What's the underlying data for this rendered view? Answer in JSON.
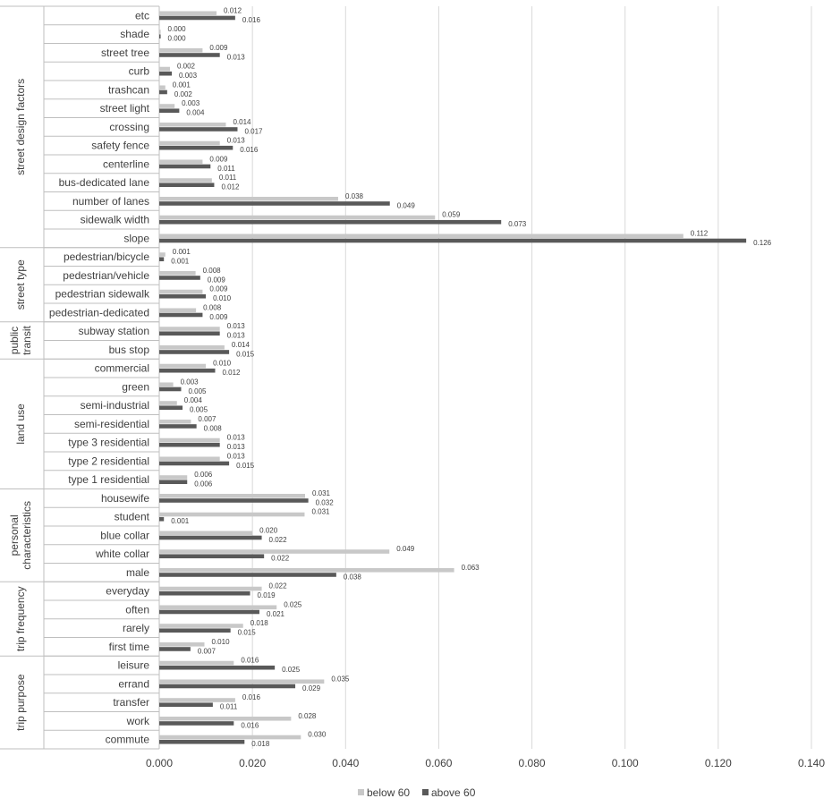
{
  "chart_data": {
    "type": "bar",
    "orientation": "horizontal",
    "groups": [
      {
        "name": "street design factors",
        "lines": [
          "street design factors"
        ],
        "categories": [
          "etc",
          "shade",
          "street tree",
          "curb",
          "trashcan",
          "street light",
          "crossing",
          "safety fence",
          "centerline",
          "bus-dedicated lane",
          "number of lanes",
          "sidewalk width",
          "slope"
        ]
      },
      {
        "name": "street type",
        "lines": [
          "street type"
        ],
        "categories": [
          "pedestrian/bicycle",
          "pedestrian/vehicle",
          "pedestrian sidewalk",
          "pedestrian-dedicated"
        ]
      },
      {
        "name": "public transit",
        "lines": [
          "public",
          "transit"
        ],
        "categories": [
          "subway station",
          "bus stop"
        ]
      },
      {
        "name": "land use",
        "lines": [
          "land use"
        ],
        "categories": [
          "commercial",
          "green",
          "semi-industrial",
          "semi-residential",
          "type 3 residential",
          "type 2 residential",
          "type 1 residential"
        ]
      },
      {
        "name": "personal characteristics",
        "lines": [
          "personal",
          "characteristics"
        ],
        "categories": [
          "housewife",
          "student",
          "blue collar",
          "white collar",
          "male"
        ]
      },
      {
        "name": "trip frequency",
        "lines": [
          "trip frequency"
        ],
        "categories": [
          "everyday",
          "often",
          "rarely",
          "first time"
        ]
      },
      {
        "name": "trip purpose",
        "lines": [
          "trip purpose"
        ],
        "categories": [
          "leisure",
          "errand",
          "transfer",
          "work",
          "commute"
        ]
      }
    ],
    "series": [
      {
        "name": "below 60",
        "color": "#c8c8c8",
        "labels": [
          "0.012",
          "0.000",
          "0.009",
          "0.002",
          "0.001",
          "0.003",
          "0.014",
          "0.013",
          "0.009",
          "0.011",
          "0.038",
          "0.059",
          "0.112",
          "0.001",
          "0.008",
          "0.009",
          "0.008",
          "0.013",
          "0.014",
          "0.010",
          "0.003",
          "0.004",
          "0.007",
          "0.013",
          "0.013",
          "0.006",
          "0.031",
          "0.031",
          "0.020",
          "0.049",
          "0.063",
          "0.022",
          "0.025",
          "0.018",
          "0.010",
          "0.016",
          "0.035",
          "0.016",
          "0.028",
          "0.030"
        ],
        "values": [
          0.0123,
          0.0003,
          0.0093,
          0.0023,
          0.0013,
          0.0033,
          0.0143,
          0.013,
          0.0093,
          0.0113,
          0.0384,
          0.0592,
          0.1125,
          0.0013,
          0.0078,
          0.0093,
          0.0079,
          0.013,
          0.014,
          0.01,
          0.003,
          0.0038,
          0.0068,
          0.013,
          0.013,
          0.006,
          0.0313,
          0.0312,
          0.02,
          0.0494,
          0.0633,
          0.022,
          0.0252,
          0.018,
          0.0097,
          0.016,
          0.0354,
          0.0163,
          0.0283,
          0.0304
        ]
      },
      {
        "name": "above 60",
        "color": "#595959",
        "labels": [
          "0.016",
          "0.000",
          "0.013",
          "0.003",
          "0.002",
          "0.004",
          "0.017",
          "0.016",
          "0.011",
          "0.012",
          "0.049",
          "0.073",
          "0.126",
          "0.001",
          "0.009",
          "0.010",
          "0.009",
          "0.013",
          "0.015",
          "0.012",
          "0.005",
          "0.005",
          "0.008",
          "0.013",
          "0.015",
          "0.006",
          "0.032",
          "0.001",
          "0.022",
          "0.022",
          "0.038",
          "0.019",
          "0.021",
          "0.015",
          "0.007",
          "0.025",
          "0.029",
          "0.011",
          "0.016",
          "0.018"
        ],
        "values": [
          0.0163,
          0.0003,
          0.013,
          0.0027,
          0.0017,
          0.0043,
          0.0168,
          0.0158,
          0.011,
          0.0118,
          0.0495,
          0.0734,
          0.126,
          0.001,
          0.0088,
          0.01,
          0.0093,
          0.013,
          0.015,
          0.012,
          0.0047,
          0.005,
          0.008,
          0.013,
          0.015,
          0.006,
          0.032,
          0.001,
          0.022,
          0.0225,
          0.038,
          0.0195,
          0.0215,
          0.0153,
          0.0067,
          0.0248,
          0.0292,
          0.0115,
          0.016,
          0.0183
        ]
      }
    ],
    "xlim": [
      0,
      0.14
    ],
    "xticks": [
      "0.000",
      "0.020",
      "0.040",
      "0.060",
      "0.080",
      "0.100",
      "0.120",
      "0.140"
    ],
    "xlabel": "",
    "ylabel": "",
    "title": "",
    "grid": "vertical",
    "legend": {
      "position": "bottom",
      "entries": [
        "below 60",
        "above 60"
      ]
    }
  }
}
